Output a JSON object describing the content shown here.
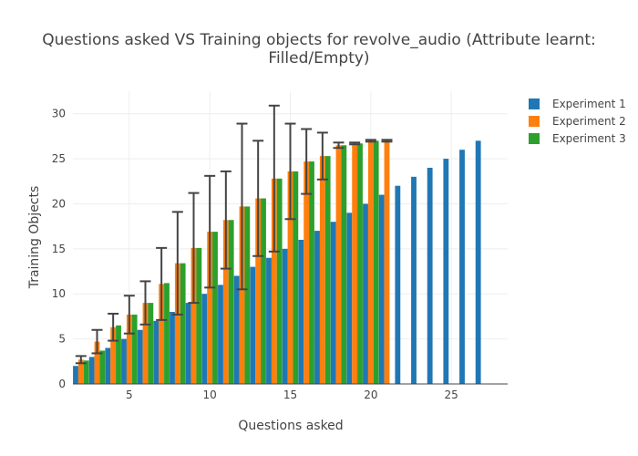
{
  "chart_data": {
    "type": "bar",
    "title": "Questions asked VS Training objects for revolve_audio (Attribute learnt: Filled/Empty)",
    "xlabel": "Questions asked",
    "ylabel": "Training Objects",
    "xlim": [
      1.5,
      28.5
    ],
    "ylim": [
      0,
      32.5
    ],
    "xticks": [
      5,
      10,
      15,
      20,
      25
    ],
    "yticks": [
      0,
      5,
      10,
      15,
      20,
      25,
      30
    ],
    "grid": true,
    "legend_position": "top-right",
    "series": [
      {
        "name": "Experiment 1",
        "color": "#1f77b4",
        "x": [
          2,
          3,
          4,
          5,
          6,
          7,
          8,
          9,
          10,
          11,
          12,
          13,
          14,
          15,
          16,
          17,
          18,
          19,
          20,
          21,
          22,
          23,
          24,
          25,
          26,
          27
        ],
        "values": [
          2,
          3,
          4,
          5,
          6,
          7,
          8,
          9,
          10,
          11,
          12,
          13,
          14,
          15,
          16,
          17,
          18,
          19,
          20,
          21,
          22,
          23,
          24,
          25,
          26,
          27
        ]
      },
      {
        "name": "Experiment 2",
        "color": "#ff7f0e",
        "x": [
          2,
          3,
          4,
          5,
          6,
          7,
          8,
          9,
          10,
          11,
          12,
          13,
          14,
          15,
          16,
          17,
          18,
          19,
          20,
          21
        ],
        "values": [
          2.7,
          4.7,
          6.3,
          7.7,
          9.0,
          11.1,
          13.4,
          15.1,
          16.9,
          18.2,
          19.7,
          20.6,
          22.8,
          23.6,
          24.7,
          25.3,
          26.5,
          26.7,
          27.0,
          27.0
        ],
        "error": [
          0.4,
          1.3,
          1.5,
          2.1,
          2.4,
          4.0,
          5.7,
          6.1,
          6.2,
          5.4,
          9.2,
          6.4,
          8.1,
          5.3,
          3.6,
          2.6,
          0.3,
          0.1,
          0.1,
          0.1
        ]
      },
      {
        "name": "Experiment 3",
        "color": "#2ca02c",
        "x": [
          2,
          3,
          4,
          5,
          6,
          7,
          8,
          9,
          10,
          11,
          12,
          13,
          14,
          15,
          16,
          17,
          18,
          19,
          20
        ],
        "values": [
          2.6,
          3.7,
          6.5,
          7.7,
          9.0,
          11.2,
          13.4,
          15.1,
          16.9,
          18.2,
          19.7,
          20.6,
          22.8,
          23.6,
          24.7,
          25.3,
          26.5,
          26.7,
          27.0
        ]
      }
    ]
  }
}
